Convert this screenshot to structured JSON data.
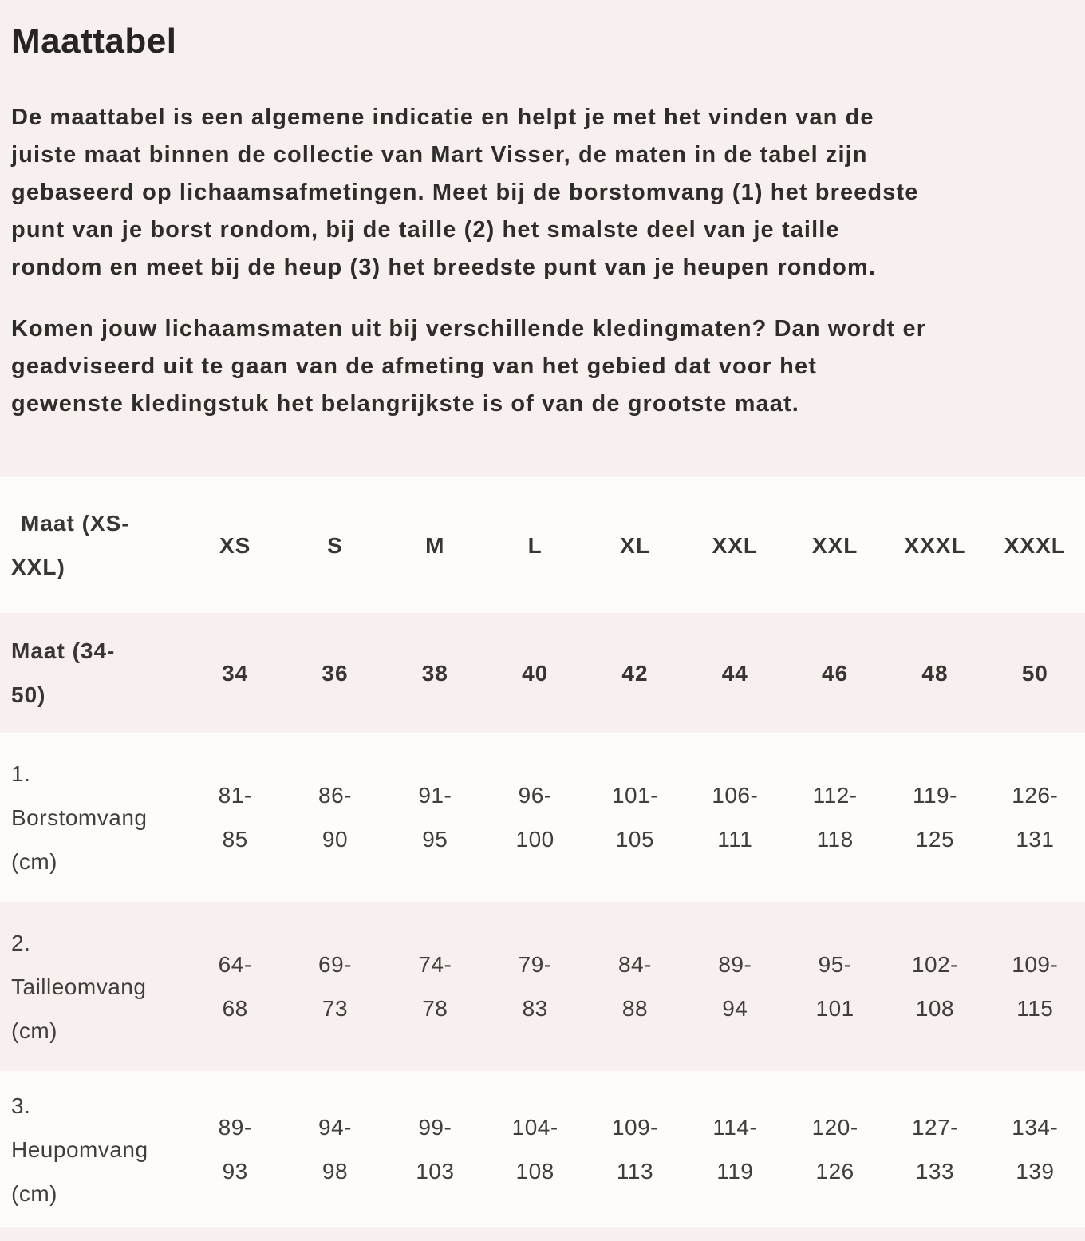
{
  "page": {
    "title": "Maattabel",
    "paragraphs": [
      "De maattabel is een algemene indicatie en helpt je met het vinden van de\njuiste maat binnen de collectie van Mart Visser, de maten in de tabel zijn\ngebaseerd op lichaamsafmetingen. Meet bij de borstomvang (1) het breedste\npunt van je borst rondom, bij de taille (2) het smalste deel van je taille\nrondom en meet bij de heup (3) het breedste punt van je heupen rondom.",
      "Komen jouw lichaamsmaten uit bij verschillende kledingmaten? Dan wordt er\ngeadviseerd uit te gaan van de afmeting van het gebied dat voor het\ngewenste kledingstuk het belangrijkste is of van de grootste maat."
    ]
  },
  "size_table": {
    "rows": [
      {
        "label": "Maat (XS-\nXXL)",
        "values": [
          "XS",
          "S",
          "M",
          "L",
          "XL",
          "XXL",
          "XXL",
          "XXXL",
          "XXXL"
        ]
      },
      {
        "label": "Maat (34-\n50)",
        "values": [
          "34",
          "36",
          "38",
          "40",
          "42",
          "44",
          "46",
          "48",
          "50"
        ]
      },
      {
        "label": "1.\nBorstomvang\n(cm)",
        "values": [
          "81-\n85",
          "86-\n90",
          "91-\n95",
          "96-\n100",
          "101-\n105",
          "106-\n111",
          "112-\n118",
          "119-\n125",
          "126-\n131"
        ]
      },
      {
        "label": "2.\nTailleomvang\n(cm)",
        "values": [
          "64-\n68",
          "69-\n73",
          "74-\n78",
          "79-\n83",
          "84-\n88",
          "89-\n94",
          "95-\n101",
          "102-\n108",
          "109-\n115"
        ]
      },
      {
        "label": "3.\nHeupomvang\n(cm)",
        "values": [
          "89-\n93",
          "94-\n98",
          "99-\n103",
          "104-\n108",
          "109-\n113",
          "114-\n119",
          "120-\n126",
          "127-\n133",
          "134-\n139"
        ]
      }
    ]
  },
  "colors": {
    "page_background": "#f8f0ee",
    "row_background": "#fdfcfa",
    "heading_text": "#272522",
    "body_text": "#2f2d2a",
    "table_text": "#403e3b"
  }
}
